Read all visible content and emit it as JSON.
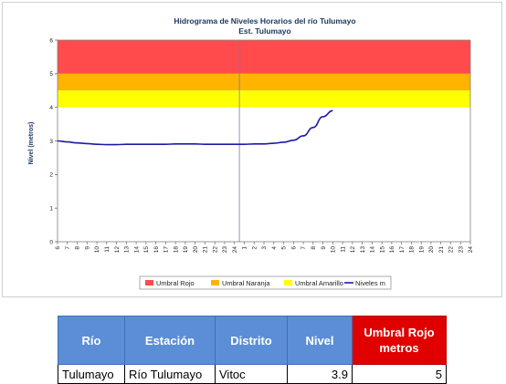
{
  "chart_data": {
    "type": "line",
    "title": "Hidrograma de Niveles Horarios del río Tulumayo",
    "subtitle": "Est. Tulumayo",
    "ylabel": "Nivel (metros)",
    "ylim": [
      0,
      6
    ],
    "yticks": [
      "0",
      "1",
      "2",
      "3",
      "4",
      "5",
      "6"
    ],
    "xticks": [
      "6",
      "7",
      "8",
      "9",
      "10",
      "11",
      "12",
      "13",
      "14",
      "15",
      "16",
      "17",
      "18",
      "19",
      "20",
      "21",
      "22",
      "23",
      "24",
      "1",
      "2",
      "3",
      "4",
      "5",
      "6",
      "7",
      "8",
      "9",
      "10",
      "11",
      "12",
      "13",
      "14",
      "15",
      "16",
      "17",
      "18",
      "19",
      "20",
      "21",
      "22",
      "23",
      "24"
    ],
    "day_divider_after_tick": "24",
    "bands": [
      {
        "name": "Umbral Rojo",
        "from": 5,
        "to": 6,
        "color": "#ff4b4b"
      },
      {
        "name": "Umbral Naranja",
        "from": 4.5,
        "to": 5,
        "color": "#ffb400"
      },
      {
        "name": "Umbral Amarillo",
        "from": 4,
        "to": 4.5,
        "color": "#ffff00"
      }
    ],
    "series": [
      {
        "name": "Niveles m",
        "color": "#1a1aa6",
        "values": [
          3.0,
          2.97,
          2.94,
          2.92,
          2.9,
          2.89,
          2.89,
          2.9,
          2.9,
          2.9,
          2.9,
          2.9,
          2.91,
          2.91,
          2.91,
          2.9,
          2.9,
          2.9,
          2.9,
          2.9,
          2.91,
          2.91,
          2.93,
          2.96,
          3.02,
          3.15,
          3.4,
          3.72,
          3.9
        ]
      }
    ],
    "legend": {
      "placement": "bottom",
      "items": [
        {
          "label": "Umbral Rojo",
          "kind": "patch",
          "color": "#ff4b4b"
        },
        {
          "label": "Umbral Naranja",
          "kind": "patch",
          "color": "#ffb400"
        },
        {
          "label": "Umbral Amarillo",
          "kind": "patch",
          "color": "#ffff00"
        },
        {
          "label": "Niveles m",
          "kind": "line",
          "color": "#1a1aa6"
        }
      ]
    },
    "grid": false
  },
  "table": {
    "headers": {
      "rio": "Río",
      "estacion": "Estación",
      "distrito": "Distrito",
      "nivel": "Nivel",
      "umbral_line1": "Umbral Rojo",
      "umbral_line2": "metros"
    },
    "row": {
      "rio": "Tulumayo",
      "estacion": "Río Tulumayo",
      "distrito": "Vitoc",
      "nivel": "3.9",
      "umbral": "5"
    }
  }
}
